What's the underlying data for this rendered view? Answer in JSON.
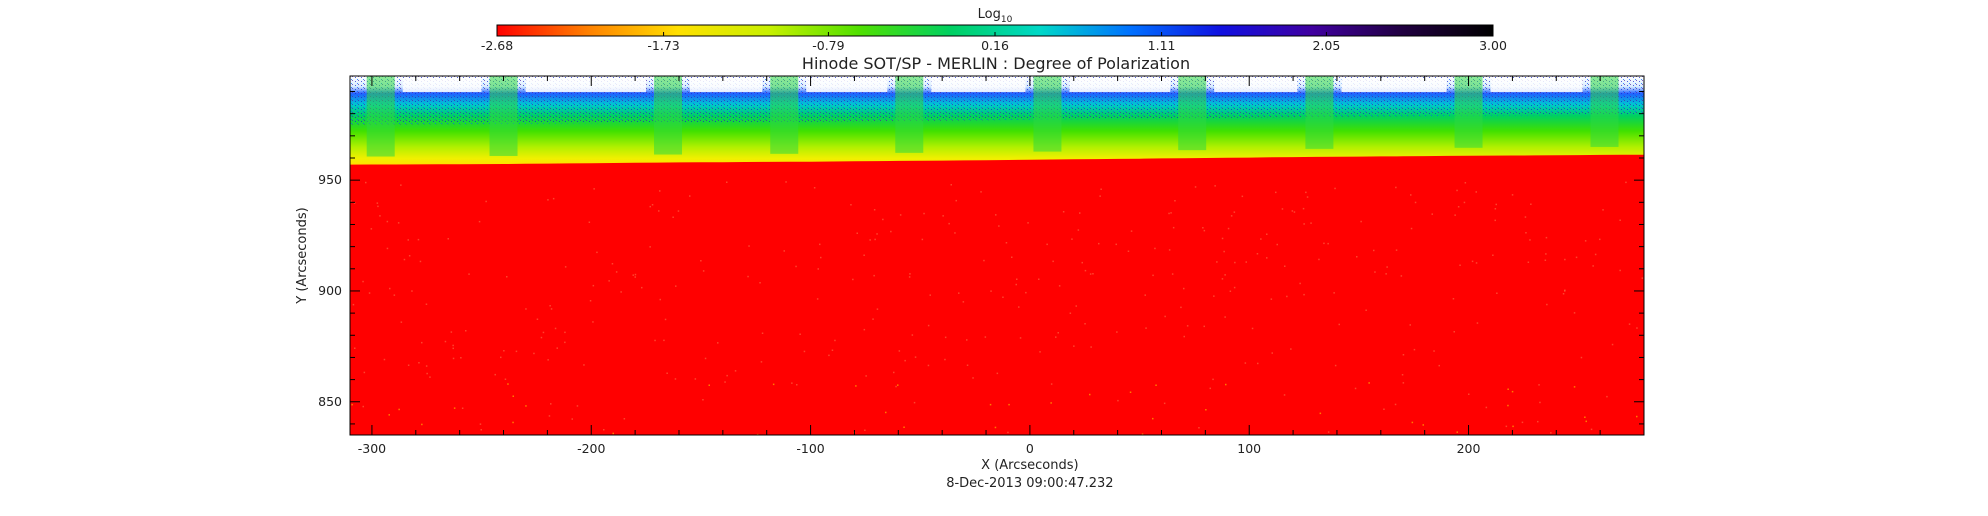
{
  "chart_data": {
    "type": "heatmap",
    "title": "Hinode SOT/SP - MERLIN : Degree of Polarization",
    "xlabel": "X (Arcseconds)",
    "ylabel": "Y (Arcseconds)",
    "timestamp": "8-Dec-2013 09:00:47.232",
    "xlim": [
      -310,
      280
    ],
    "ylim": [
      835,
      997
    ],
    "x_ticks": [
      -300,
      -200,
      -100,
      0,
      100,
      200
    ],
    "x_tick_labels": [
      "-300",
      "-200",
      "-100",
      "0",
      "100",
      "200"
    ],
    "y_ticks": [
      850,
      900,
      950
    ],
    "y_tick_labels": [
      "850",
      "900",
      "950"
    ],
    "limb_y": [
      {
        "x": -310,
        "y": 957
      },
      {
        "x": -240,
        "y": 957.3
      },
      {
        "x": -160,
        "y": 958
      },
      {
        "x": -90,
        "y": 958.4
      },
      {
        "x": 0,
        "y": 959.2
      },
      {
        "x": 60,
        "y": 959.8
      },
      {
        "x": 130,
        "y": 960.5
      },
      {
        "x": 200,
        "y": 961
      },
      {
        "x": 280,
        "y": 961.5
      }
    ],
    "scan_column_centers": [
      -296,
      -240,
      -165,
      -112,
      -55,
      8,
      74,
      132,
      200,
      262
    ],
    "colorbar": {
      "title": "Log",
      "title_subscript": "10",
      "min": -2.68,
      "max": 3.0,
      "tick_values": [
        -2.68,
        -1.73,
        -0.79,
        0.16,
        1.11,
        2.05,
        3.0
      ],
      "tick_labels": [
        "-2.68",
        "-1.73",
        "-0.79",
        "0.16",
        "1.11",
        "2.05",
        "3.00"
      ],
      "colors": [
        "#ff0000",
        "#ff8000",
        "#ffe000",
        "#c8f000",
        "#50e000",
        "#00d060",
        "#00d8c8",
        "#0070ff",
        "#1010e0",
        "#4000a0",
        "#200040",
        "#000000"
      ]
    },
    "grid": false,
    "colors": {
      "disk": "#ff0000",
      "offlimb_white": "#ffffff",
      "frame": "#000000"
    }
  }
}
